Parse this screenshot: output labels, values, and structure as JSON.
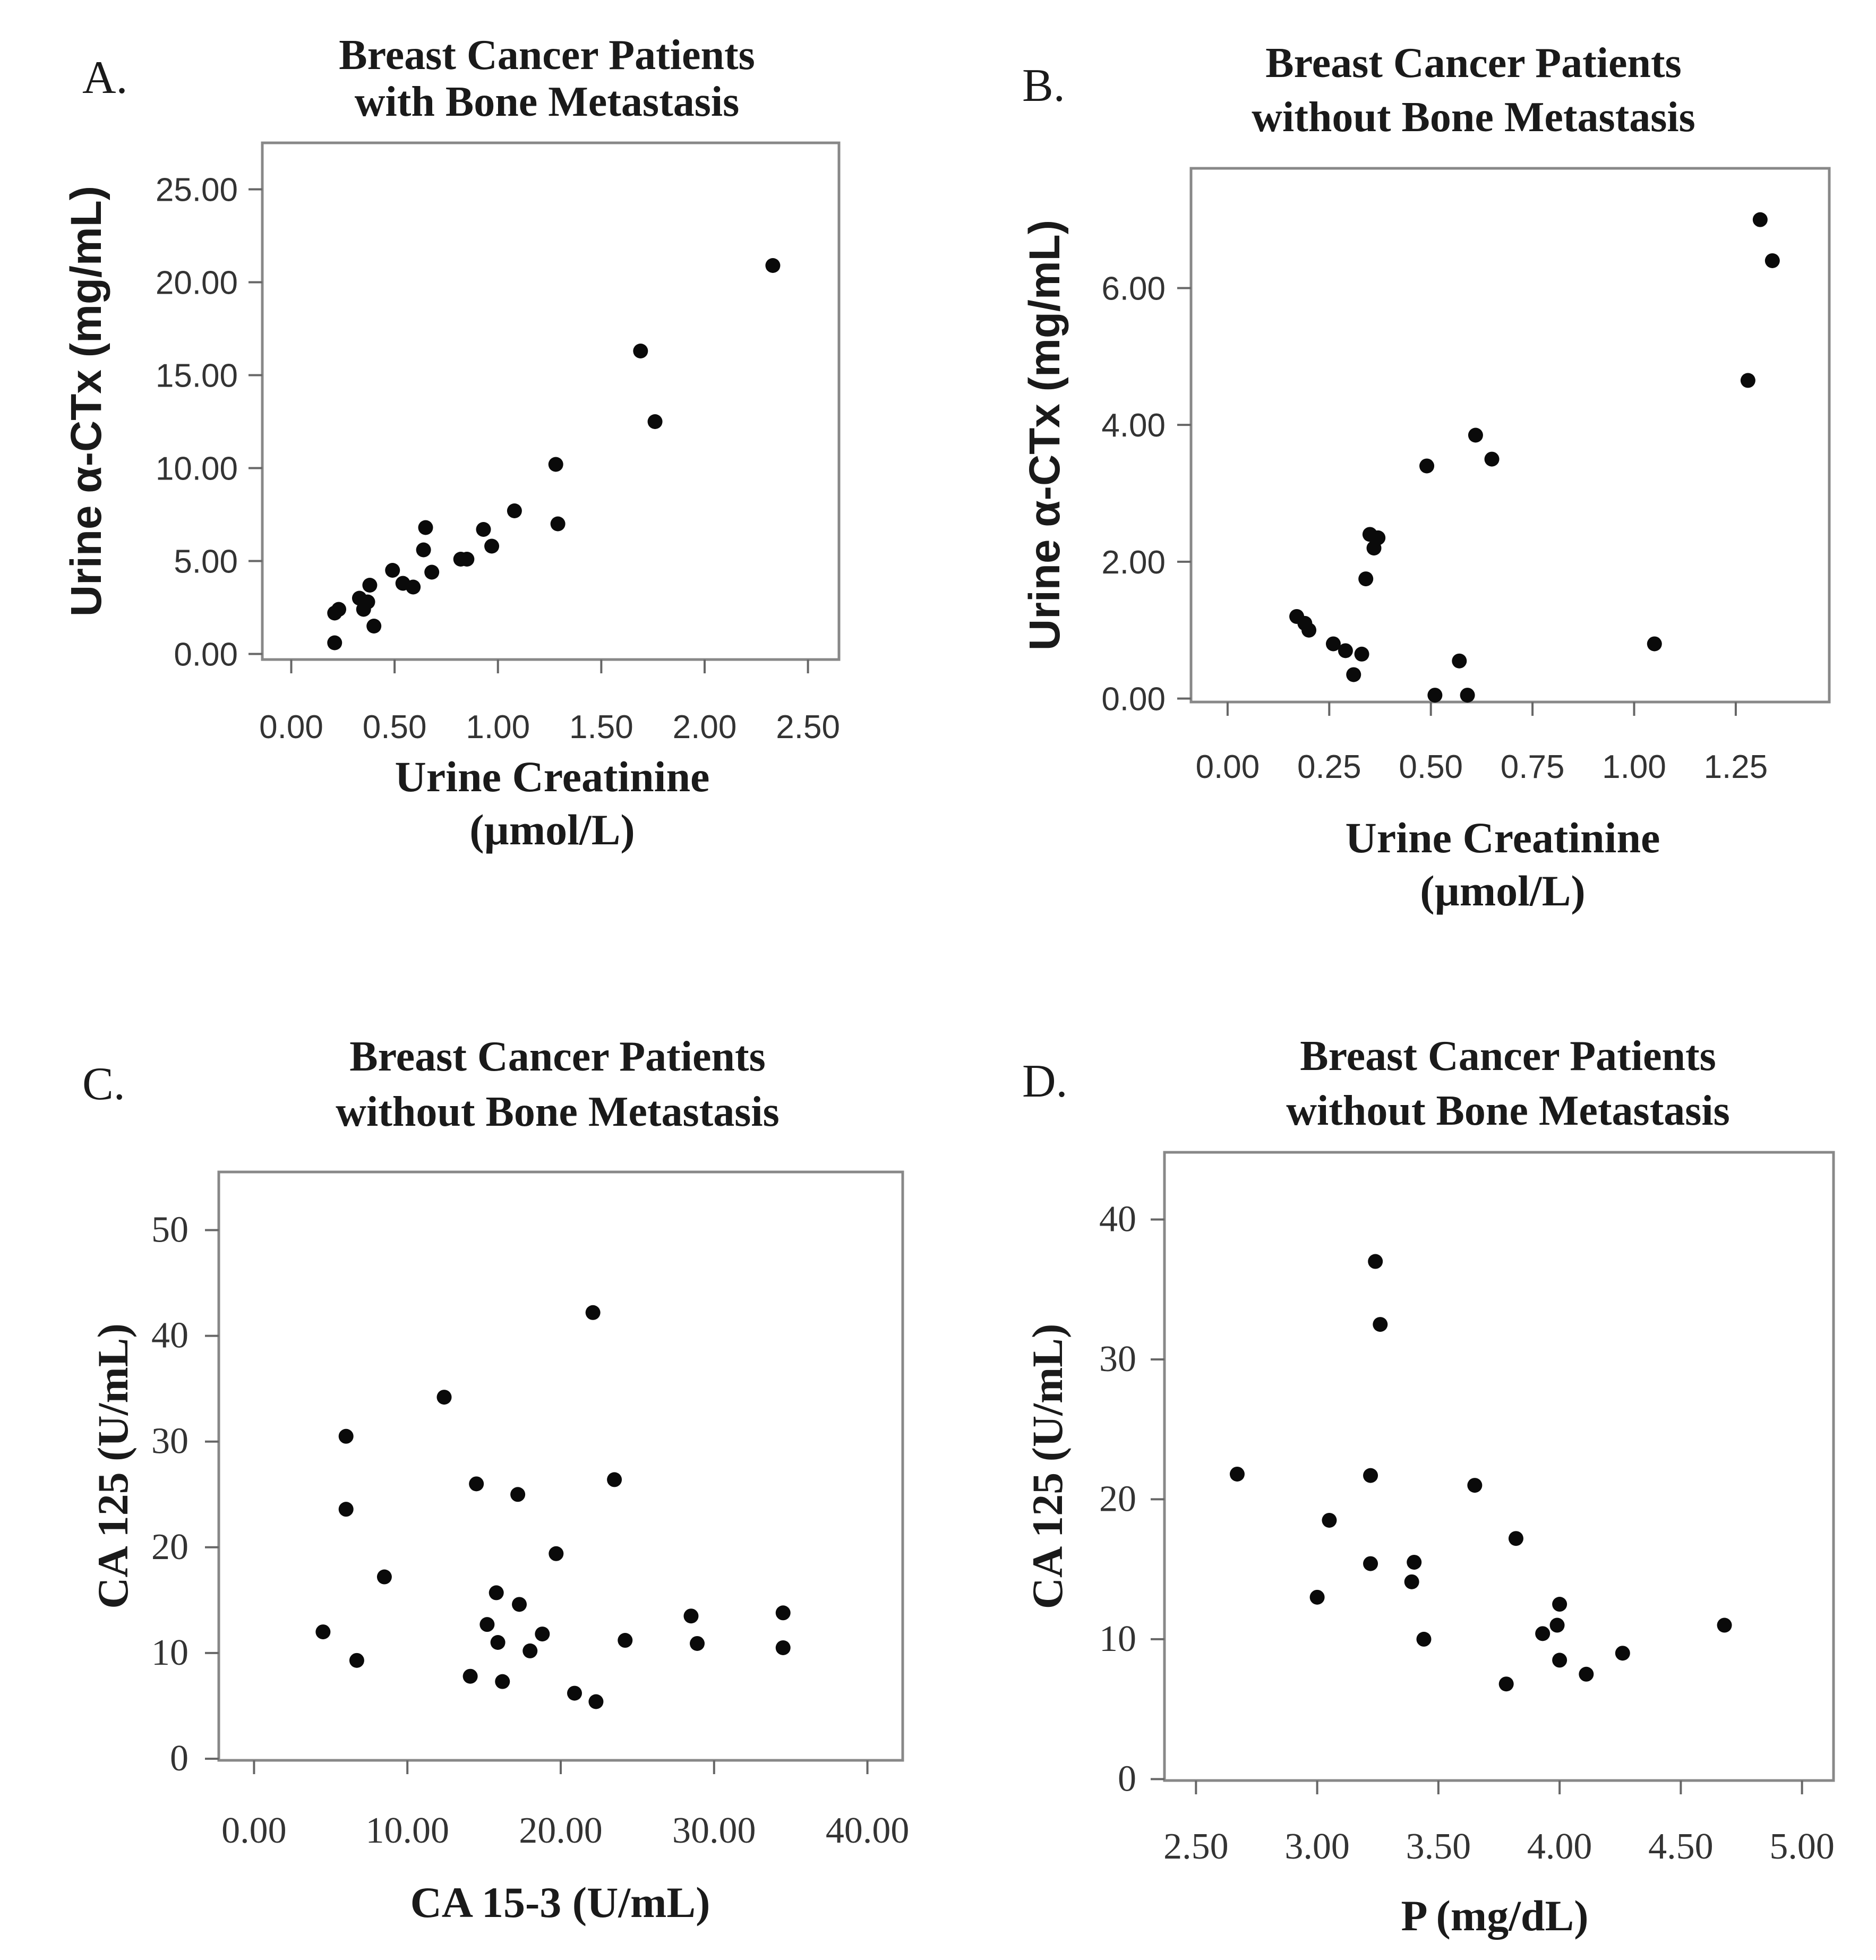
{
  "chart_data": [
    {
      "type": "scatter",
      "panel": "A.",
      "title": [
        "Breast Cancer Patients",
        "with Bone Metastasis"
      ],
      "xlabel": [
        "Urine Creatinine",
        "(µmol/L)"
      ],
      "ylabel": "Urine α-CTx (mg/mL)",
      "xlim": [
        -0.14,
        2.65
      ],
      "ylim": [
        -0.3,
        27.5
      ],
      "xticks": [
        0.0,
        0.5,
        1.0,
        1.5,
        2.0,
        2.5
      ],
      "xtick_labels": [
        "0.00",
        "0.50",
        "1.00",
        "1.50",
        "2.00",
        "2.50"
      ],
      "yticks": [
        0,
        5,
        10,
        15,
        20,
        25
      ],
      "ytick_labels": [
        "0.00",
        "5.00",
        "10.00",
        "15.00",
        "20.00",
        "25.00"
      ],
      "points": [
        {
          "x": 0.21,
          "y": 0.6
        },
        {
          "x": 0.21,
          "y": 2.2
        },
        {
          "x": 0.23,
          "y": 2.4
        },
        {
          "x": 0.33,
          "y": 3.0
        },
        {
          "x": 0.35,
          "y": 2.4
        },
        {
          "x": 0.37,
          "y": 2.8
        },
        {
          "x": 0.38,
          "y": 3.7
        },
        {
          "x": 0.4,
          "y": 1.5
        },
        {
          "x": 0.49,
          "y": 4.5
        },
        {
          "x": 0.54,
          "y": 3.8
        },
        {
          "x": 0.59,
          "y": 3.6
        },
        {
          "x": 0.64,
          "y": 5.6
        },
        {
          "x": 0.65,
          "y": 6.8
        },
        {
          "x": 0.68,
          "y": 4.4
        },
        {
          "x": 0.82,
          "y": 5.1
        },
        {
          "x": 0.85,
          "y": 5.1
        },
        {
          "x": 0.93,
          "y": 6.7
        },
        {
          "x": 0.97,
          "y": 5.8
        },
        {
          "x": 1.08,
          "y": 7.7
        },
        {
          "x": 1.28,
          "y": 10.2
        },
        {
          "x": 1.29,
          "y": 7.0
        },
        {
          "x": 1.69,
          "y": 16.3
        },
        {
          "x": 1.76,
          "y": 12.5
        },
        {
          "x": 2.33,
          "y": 20.9
        }
      ]
    },
    {
      "type": "scatter",
      "panel": "B.",
      "title": [
        "Breast Cancer Patients",
        "without Bone Metastasis"
      ],
      "xlabel": [
        "Urine Creatinine",
        "(µmol/L)"
      ],
      "ylabel": "Urine α-CTx (mg/mL)",
      "xlim": [
        -0.09,
        1.48
      ],
      "ylim": [
        -0.05,
        7.75
      ],
      "xticks": [
        0.0,
        0.25,
        0.5,
        0.75,
        1.0,
        1.25
      ],
      "xtick_labels": [
        "0.00",
        "0.25",
        "0.50",
        "0.75",
        "1.00",
        "1.25"
      ],
      "yticks": [
        0,
        2,
        4,
        6
      ],
      "ytick_labels": [
        "0.00",
        "2.00",
        "4.00",
        "6.00"
      ],
      "points": [
        {
          "x": 0.17,
          "y": 1.2
        },
        {
          "x": 0.19,
          "y": 1.1
        },
        {
          "x": 0.2,
          "y": 1.0
        },
        {
          "x": 0.26,
          "y": 0.8
        },
        {
          "x": 0.29,
          "y": 0.7
        },
        {
          "x": 0.31,
          "y": 0.35
        },
        {
          "x": 0.33,
          "y": 0.65
        },
        {
          "x": 0.34,
          "y": 1.75
        },
        {
          "x": 0.35,
          "y": 2.4
        },
        {
          "x": 0.36,
          "y": 2.2
        },
        {
          "x": 0.37,
          "y": 2.35
        },
        {
          "x": 0.49,
          "y": 3.4
        },
        {
          "x": 0.51,
          "y": 0.05
        },
        {
          "x": 0.57,
          "y": 0.55
        },
        {
          "x": 0.59,
          "y": 0.05
        },
        {
          "x": 0.61,
          "y": 3.85
        },
        {
          "x": 0.65,
          "y": 3.5
        },
        {
          "x": 1.05,
          "y": 0.8
        },
        {
          "x": 1.28,
          "y": 4.65
        },
        {
          "x": 1.31,
          "y": 7.0
        },
        {
          "x": 1.34,
          "y": 6.4
        }
      ]
    },
    {
      "type": "scatter",
      "panel": "C.",
      "title": [
        "Breast Cancer Patients",
        "without Bone Metastasis"
      ],
      "xlabel": [
        "CA 15-3 (U/mL)"
      ],
      "ylabel": "CA 125 (U/mL)",
      "xlim": [
        -2.3,
        42.3
      ],
      "ylim": [
        -0.15,
        55.5
      ],
      "xticks": [
        0,
        10,
        20,
        30,
        40
      ],
      "xtick_labels": [
        "0.00",
        "10.00",
        "20.00",
        "30.00",
        "40.00"
      ],
      "yticks": [
        0,
        10,
        20,
        30,
        40,
        50
      ],
      "ytick_labels": [
        "0",
        "10",
        "20",
        "30",
        "40",
        "50"
      ],
      "points": [
        {
          "x": 4.5,
          "y": 12.0
        },
        {
          "x": 6.0,
          "y": 30.5
        },
        {
          "x": 6.0,
          "y": 23.6
        },
        {
          "x": 6.7,
          "y": 9.3
        },
        {
          "x": 8.5,
          "y": 17.2
        },
        {
          "x": 12.4,
          "y": 34.2
        },
        {
          "x": 14.1,
          "y": 7.8
        },
        {
          "x": 14.5,
          "y": 26.0
        },
        {
          "x": 15.2,
          "y": 12.7
        },
        {
          "x": 15.8,
          "y": 15.7
        },
        {
          "x": 15.9,
          "y": 11.0
        },
        {
          "x": 16.2,
          "y": 7.3
        },
        {
          "x": 17.2,
          "y": 25.0
        },
        {
          "x": 17.3,
          "y": 14.6
        },
        {
          "x": 18.0,
          "y": 10.2
        },
        {
          "x": 18.8,
          "y": 11.8
        },
        {
          "x": 19.7,
          "y": 19.4
        },
        {
          "x": 20.9,
          "y": 6.2
        },
        {
          "x": 22.1,
          "y": 42.2
        },
        {
          "x": 22.3,
          "y": 5.4
        },
        {
          "x": 23.5,
          "y": 26.4
        },
        {
          "x": 24.2,
          "y": 11.2
        },
        {
          "x": 28.5,
          "y": 13.5
        },
        {
          "x": 28.9,
          "y": 10.9
        },
        {
          "x": 34.5,
          "y": 13.8
        },
        {
          "x": 34.5,
          "y": 10.5
        }
      ]
    },
    {
      "type": "scatter",
      "panel": "D.",
      "title": [
        "Breast Cancer Patients",
        "without Bone Metastasis"
      ],
      "xlabel": [
        "P (mg/dL)"
      ],
      "ylabel": "CA 125 (U/mL)",
      "xlim": [
        2.37,
        5.13
      ],
      "ylim": [
        -0.1,
        44.8
      ],
      "xticks": [
        2.5,
        3.0,
        3.5,
        4.0,
        4.5,
        5.0
      ],
      "xtick_labels": [
        "2.50",
        "3.00",
        "3.50",
        "4.00",
        "4.50",
        "5.00"
      ],
      "yticks": [
        0,
        10,
        20,
        30,
        40
      ],
      "ytick_labels": [
        "0",
        "10",
        "20",
        "30",
        "40"
      ],
      "points": [
        {
          "x": 2.67,
          "y": 21.8
        },
        {
          "x": 3.0,
          "y": 13.0
        },
        {
          "x": 3.05,
          "y": 18.5
        },
        {
          "x": 3.22,
          "y": 15.4
        },
        {
          "x": 3.22,
          "y": 21.7
        },
        {
          "x": 3.24,
          "y": 37.0
        },
        {
          "x": 3.26,
          "y": 32.5
        },
        {
          "x": 3.39,
          "y": 14.1
        },
        {
          "x": 3.4,
          "y": 15.5
        },
        {
          "x": 3.44,
          "y": 10.0
        },
        {
          "x": 3.65,
          "y": 21.0
        },
        {
          "x": 3.78,
          "y": 6.8
        },
        {
          "x": 3.82,
          "y": 17.2
        },
        {
          "x": 3.93,
          "y": 10.4
        },
        {
          "x": 3.99,
          "y": 11.0
        },
        {
          "x": 4.0,
          "y": 8.5
        },
        {
          "x": 4.0,
          "y": 12.5
        },
        {
          "x": 4.11,
          "y": 7.5
        },
        {
          "x": 4.26,
          "y": 9.0
        },
        {
          "x": 4.68,
          "y": 11.0
        }
      ]
    }
  ]
}
